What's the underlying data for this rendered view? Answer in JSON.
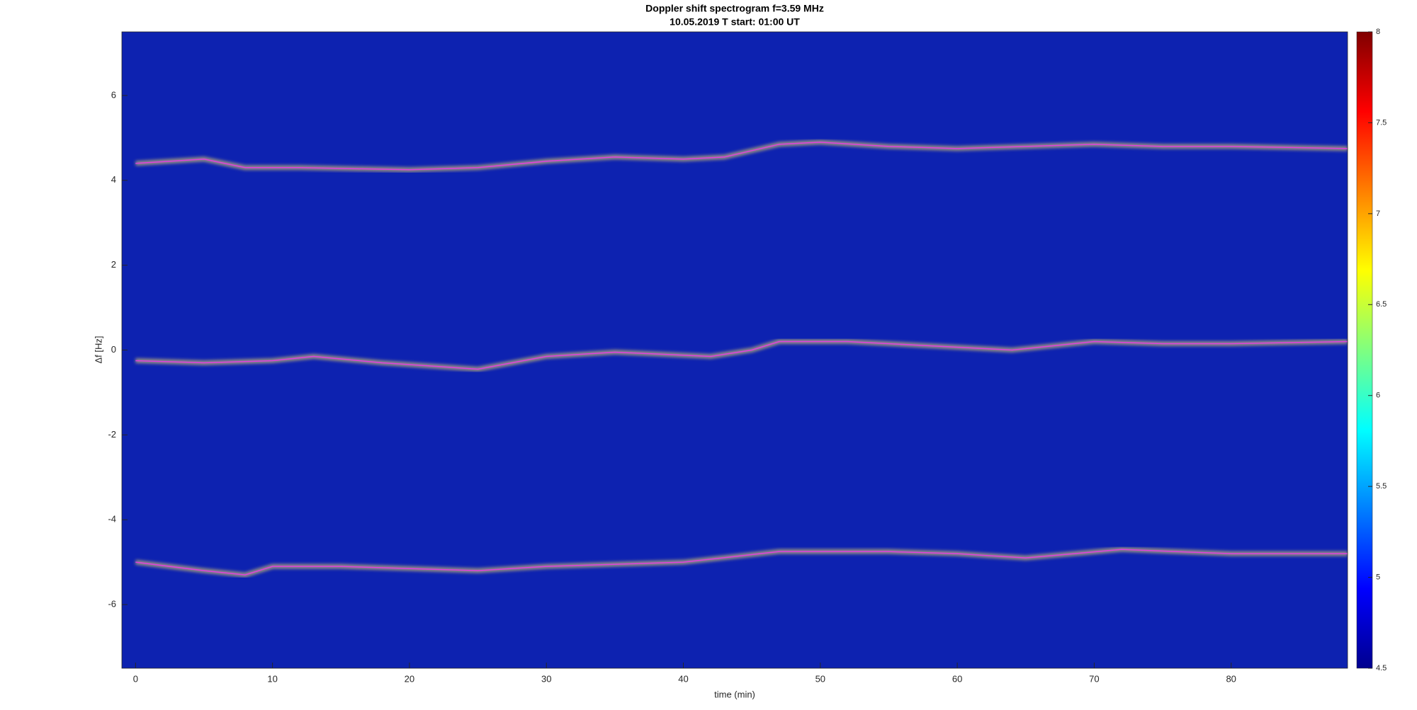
{
  "chart_data": {
    "type": "spectrogram",
    "title": "Doppler shift spectrogram f=3.59 MHz",
    "subtitle": "10.05.2019   T start: 01:00 UT",
    "xlabel": "time (min)",
    "ylabel": "Δf [Hz]",
    "xlim": [
      -1,
      88.5
    ],
    "ylim": [
      -7.5,
      7.5
    ],
    "xticks": [
      0,
      10,
      20,
      30,
      40,
      50,
      60,
      70,
      80
    ],
    "yticks": [
      -6,
      -4,
      -2,
      0,
      2,
      4,
      6
    ],
    "clim": [
      4.5,
      8
    ],
    "cticks": [
      4.5,
      5,
      5.5,
      6,
      6.5,
      7,
      7.5,
      8
    ],
    "colormap": "jet",
    "series": [
      {
        "color": "#e040e0",
        "x": [
          0,
          5,
          8,
          12,
          20,
          25,
          30,
          35,
          40,
          43,
          47,
          50,
          55,
          60,
          65,
          70,
          75,
          80,
          88.5
        ],
        "values": [
          4.4,
          4.5,
          4.3,
          4.3,
          4.25,
          4.3,
          4.45,
          4.55,
          4.5,
          4.55,
          4.85,
          4.9,
          4.8,
          4.75,
          4.8,
          4.85,
          4.8,
          4.8,
          4.75
        ]
      },
      {
        "color": "#e040e0",
        "x": [
          0,
          5,
          10,
          13,
          18,
          25,
          30,
          35,
          42,
          45,
          47,
          52,
          58,
          64,
          70,
          75,
          80,
          88.5
        ],
        "values": [
          -0.25,
          -0.3,
          -0.25,
          -0.15,
          -0.3,
          -0.45,
          -0.15,
          -0.05,
          -0.15,
          0,
          0.2,
          0.2,
          0.1,
          0,
          0.2,
          0.15,
          0.15,
          0.2
        ]
      },
      {
        "color": "#e040e0",
        "x": [
          0,
          5,
          8,
          10,
          15,
          25,
          30,
          40,
          47,
          55,
          60,
          65,
          72,
          80,
          88.5
        ],
        "values": [
          -5,
          -5.2,
          -5.3,
          -5.1,
          -5.1,
          -5.2,
          -5.1,
          -5,
          -4.75,
          -4.75,
          -4.8,
          -4.9,
          -4.7,
          -4.8,
          -4.8
        ]
      }
    ]
  }
}
